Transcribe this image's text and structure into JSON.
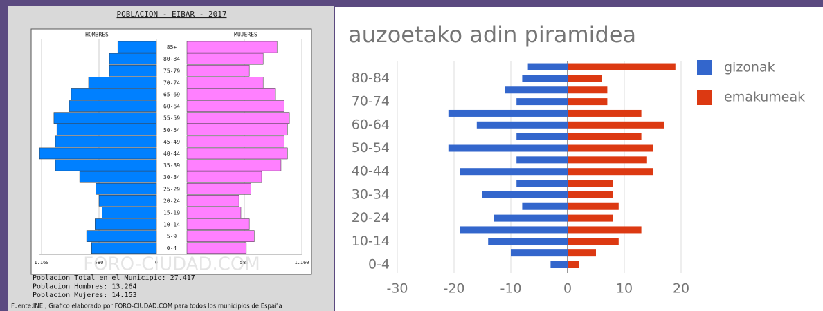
{
  "chart_data": [
    {
      "type": "pyramid",
      "title": "POBLACION - EIBAR - 2017",
      "categories": [
        "85+",
        "80-84",
        "75-79",
        "70-74",
        "65-69",
        "60-64",
        "55-59",
        "50-54",
        "45-49",
        "40-44",
        "35-39",
        "30-34",
        "25-29",
        "20-24",
        "15-19",
        "10-14",
        "5-9",
        "0-4"
      ],
      "series": [
        {
          "name": "HOMBRES",
          "color": "#0080ff",
          "values": [
            390,
            475,
            475,
            685,
            860,
            880,
            1035,
            1005,
            1020,
            1180,
            1020,
            775,
            610,
            580,
            550,
            620,
            705,
            655
          ]
        },
        {
          "name": "MUJERES",
          "color": "#ff80ff",
          "values": [
            910,
            770,
            630,
            770,
            895,
            980,
            1035,
            1015,
            980,
            1015,
            950,
            755,
            645,
            525,
            545,
            630,
            680,
            600
          ]
        }
      ],
      "xlim": [
        0,
        1160
      ],
      "xticks": [
        {
          "value": -1160,
          "label": "1.160"
        },
        {
          "value": -580,
          "label": "580"
        },
        0,
        {
          "value": 580,
          "label": "580"
        },
        {
          "value": 1160,
          "label": "1.160"
        }
      ],
      "watermark": "FORO-CIUDAD.COM",
      "notes": [
        "Poblacion Total en el Municipio: 27.417",
        "Poblacion Hombres: 13.264",
        "Poblacion Mujeres: 14.153"
      ],
      "source": "Fuente:INE , Grafico elaborado por FORO-CIUDAD.COM para todos los municipios de España"
    },
    {
      "type": "pyramid",
      "title": "auzoetako adin piramidea",
      "categories": [
        "0-4",
        null,
        "10-14",
        null,
        "20-24",
        null,
        "30-34",
        null,
        "40-44",
        null,
        "50-54",
        null,
        "60-64",
        null,
        "70-74",
        null,
        "80-84",
        null
      ],
      "series": [
        {
          "name": "gizonak",
          "color": "#3366cc",
          "values": [
            -3,
            -10,
            -14,
            -19,
            -13,
            -8,
            -15,
            -9,
            -19,
            -9,
            -21,
            -9,
            -16,
            -21,
            -9,
            -11,
            -8,
            -7
          ]
        },
        {
          "name": "emakumeak",
          "color": "#dc3912",
          "values": [
            2,
            5,
            9,
            13,
            8,
            9,
            8,
            8,
            15,
            14,
            15,
            13,
            17,
            13,
            7,
            7,
            6,
            19
          ]
        }
      ],
      "xlim": [
        -30,
        20
      ],
      "xticks": [
        -30,
        -20,
        -10,
        0,
        10,
        20
      ],
      "grid": true,
      "legend": "right"
    }
  ]
}
